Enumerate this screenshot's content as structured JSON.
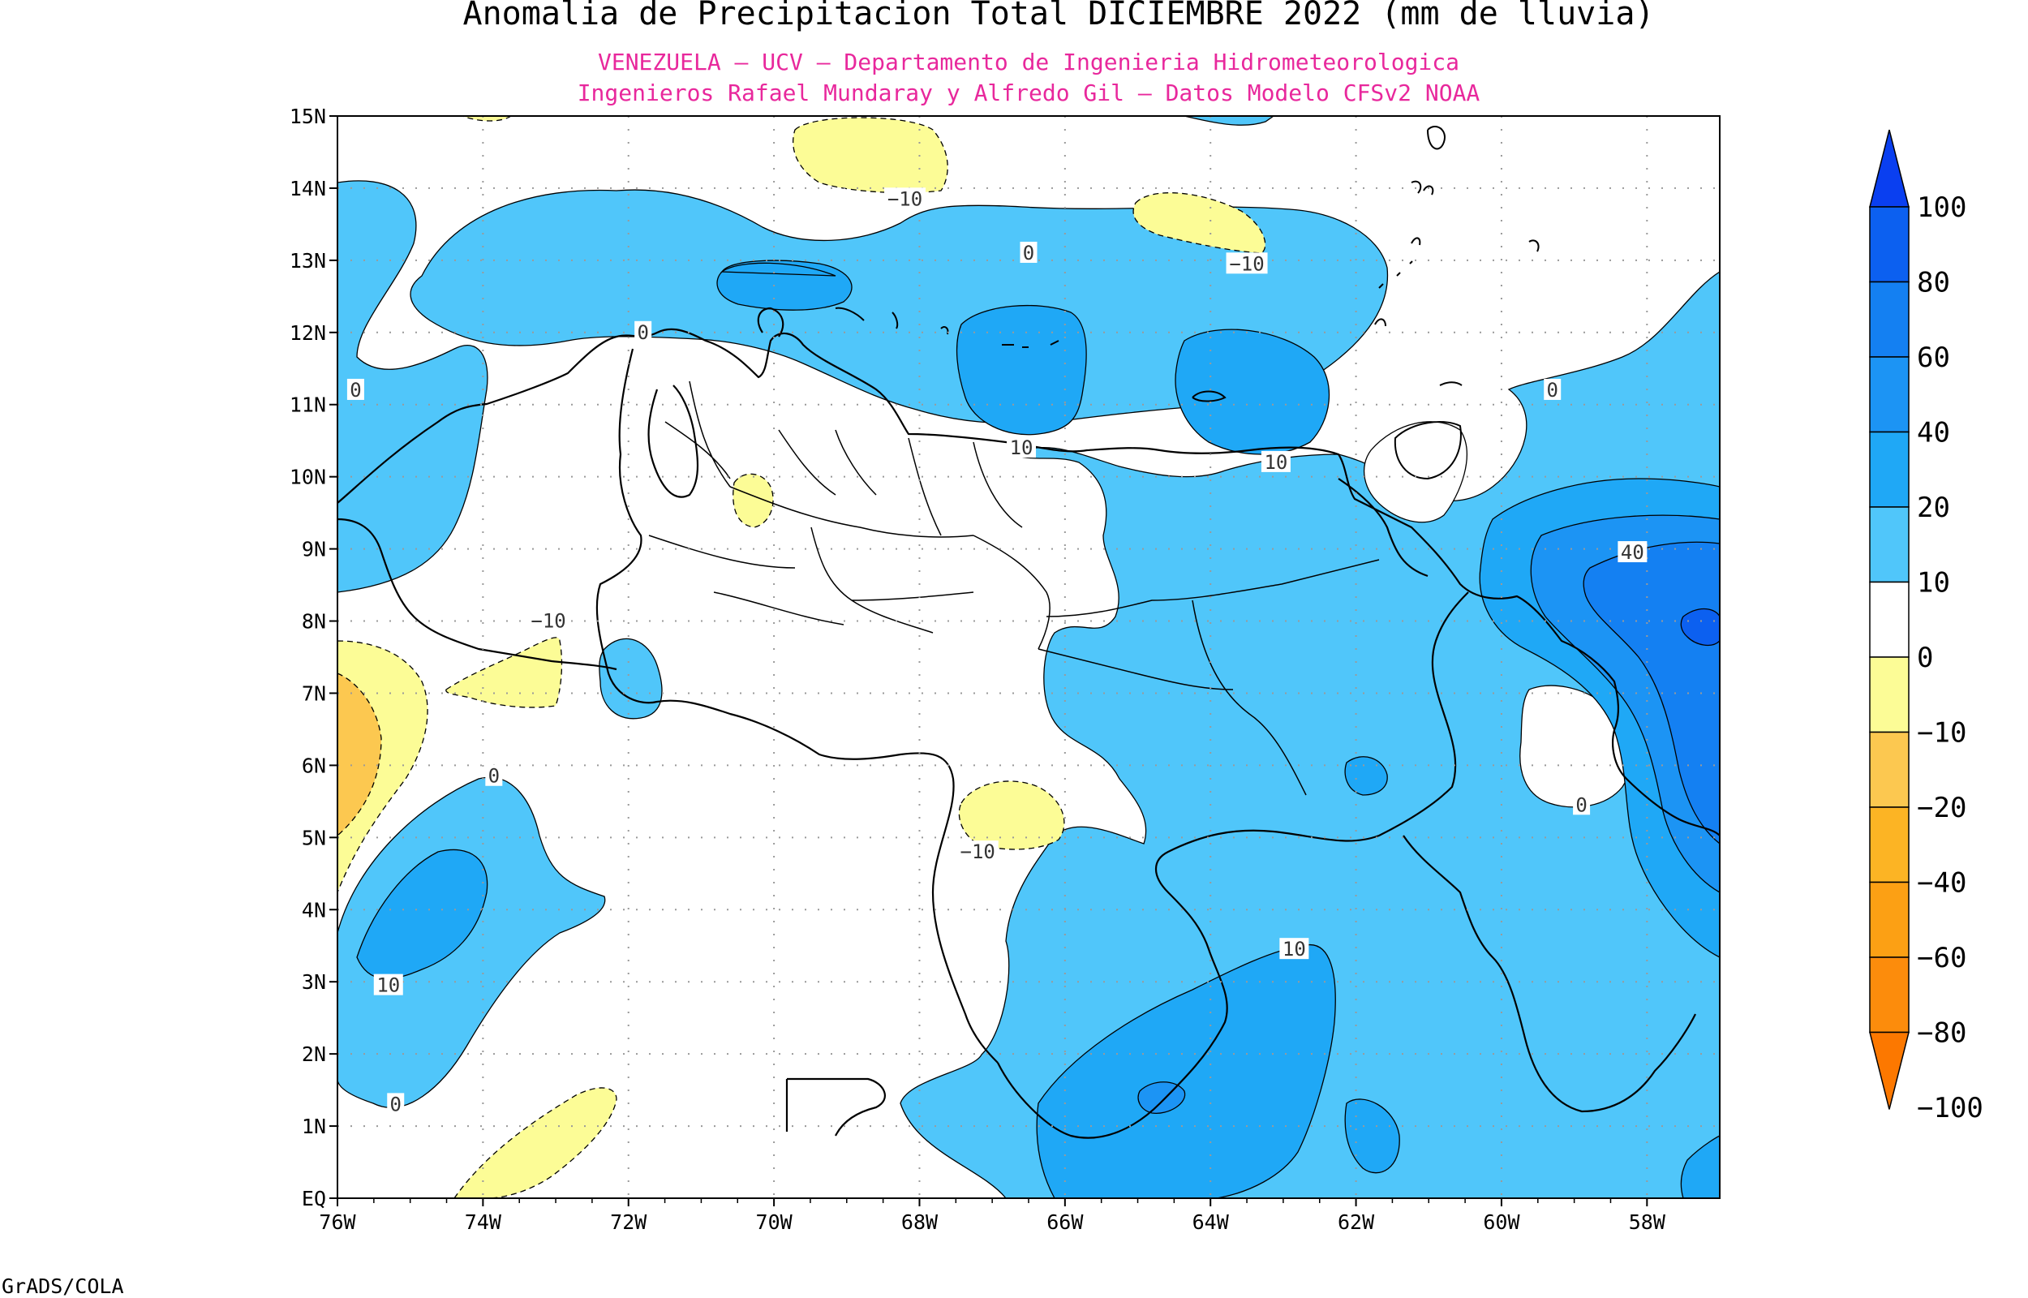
{
  "title": "Anomalia de Precipitacion Total DICIEMBRE 2022 (mm de lluvia)",
  "subtitle_line1": "VENEZUELA — UCV — Departamento de Ingenieria Hidrometeorologica",
  "subtitle_line2": "Ingenieros Rafael Mundaray y Alfredo Gil — Datos Modelo CFSv2 NOAA",
  "credit": "GrADS/COLA",
  "lon_ticks": [
    "76W",
    "74W",
    "72W",
    "70W",
    "68W",
    "66W",
    "64W",
    "62W",
    "60W",
    "58W"
  ],
  "lat_ticks": [
    "EQ",
    "1N",
    "2N",
    "3N",
    "4N",
    "5N",
    "6N",
    "7N",
    "8N",
    "9N",
    "10N",
    "11N",
    "12N",
    "13N",
    "14N",
    "15N"
  ],
  "contour_labels": [
    {
      "text": "−10",
      "lon": -68.2,
      "lat": 13.85
    },
    {
      "text": "0",
      "lon": -66.5,
      "lat": 13.1
    },
    {
      "text": "−10",
      "lon": -63.5,
      "lat": 12.95
    },
    {
      "text": "0",
      "lon": -71.8,
      "lat": 12.0
    },
    {
      "text": "0",
      "lon": -75.75,
      "lat": 11.2
    },
    {
      "text": "10",
      "lon": -66.6,
      "lat": 10.4
    },
    {
      "text": "10",
      "lon": -63.1,
      "lat": 10.2
    },
    {
      "text": "0",
      "lon": -59.3,
      "lat": 11.2
    },
    {
      "text": "40",
      "lon": -58.2,
      "lat": 8.95
    },
    {
      "text": "−10",
      "lon": -73.1,
      "lat": 8.0
    },
    {
      "text": "0",
      "lon": -73.85,
      "lat": 5.85
    },
    {
      "text": "0",
      "lon": -58.9,
      "lat": 5.45
    },
    {
      "text": "−10",
      "lon": -67.2,
      "lat": 4.8
    },
    {
      "text": "10",
      "lon": -75.3,
      "lat": 2.95
    },
    {
      "text": "10",
      "lon": -62.85,
      "lat": 3.45
    },
    {
      "text": "0",
      "lon": -75.2,
      "lat": 1.3
    }
  ],
  "colorbar": {
    "labels": [
      "100",
      "80",
      "60",
      "40",
      "20",
      "10",
      "0",
      "−10",
      "−20",
      "−40",
      "−60",
      "−80",
      "−100"
    ],
    "colors": [
      "#0a3ff0",
      "#0c60f0",
      "#1480f2",
      "#1c94f4",
      "#1fa8f6",
      "#50c6fa",
      "#ffffff",
      "#fcfc96",
      "#fcc850",
      "#fcb424",
      "#fca014",
      "#fc8c0c",
      "#fc7800"
    ]
  },
  "map_colors": {
    "neg10": "#fcfc96",
    "neg20": "#fcc850",
    "pos0": "#50c6fa",
    "pos10": "#1fa8f6",
    "pos20": "#1c94f4",
    "pos40": "#1480f2",
    "pos60": "#0c60f0"
  }
}
